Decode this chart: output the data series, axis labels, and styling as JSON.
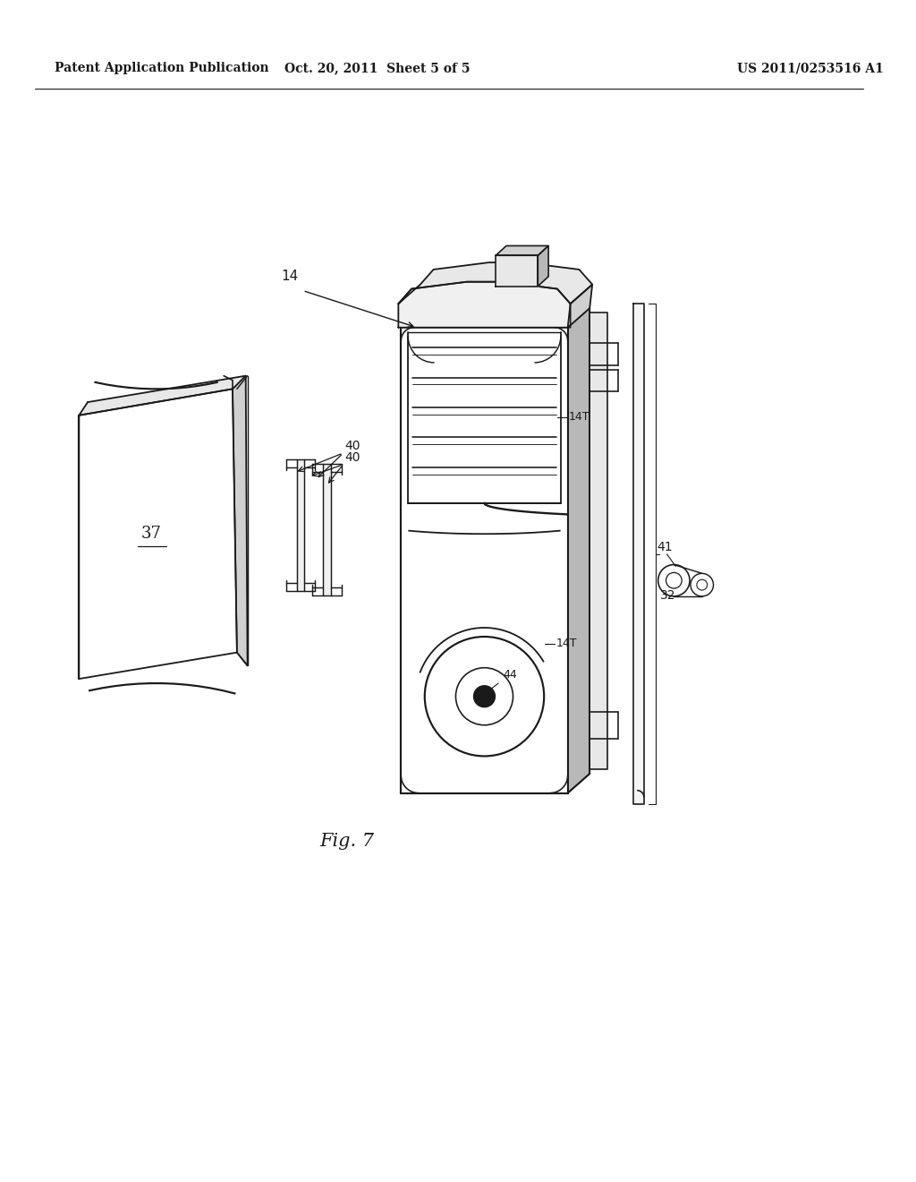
{
  "bg": "#ffffff",
  "lc": "#1a1a1a",
  "lw": 1.3,
  "header_left": "Patent Application Publication",
  "header_center": "Oct. 20, 2011  Sheet 5 of 5",
  "header_right": "US 2011/0253516 A1",
  "fig_label": "Fig. 7"
}
